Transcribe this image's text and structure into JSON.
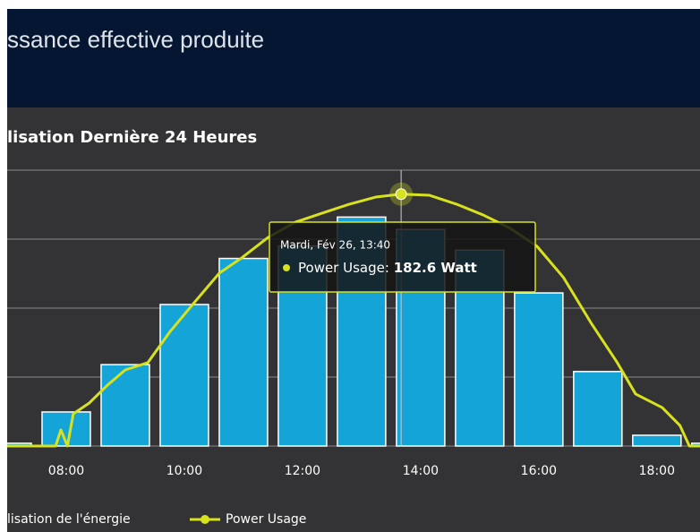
{
  "header": {
    "title": "ssance effective produite"
  },
  "chart_data": {
    "type": "combo",
    "title": "lisation Dernière 24 Heures",
    "series": [
      {
        "name": "lisation de l'énergie",
        "type": "bar",
        "color": "#15a4d8",
        "x": [
          7,
          8,
          9,
          10,
          11,
          12,
          13,
          14,
          15,
          16,
          17,
          18,
          19
        ],
        "values": [
          2,
          24.7,
          59,
          102.6,
          136,
          145,
          166,
          157,
          142,
          111,
          54,
          7.8,
          2
        ]
      },
      {
        "name": "Power Usage",
        "type": "line",
        "color": "#d8e21c",
        "x": [
          7.0,
          7.82,
          7.91,
          8.02,
          8.12,
          8.39,
          8.7,
          9.0,
          9.38,
          9.76,
          10.14,
          10.59,
          10.97,
          11.42,
          11.88,
          12.33,
          12.79,
          13.24,
          13.67,
          14.15,
          14.61,
          15.06,
          15.52,
          15.97,
          16.42,
          16.88,
          17.33,
          17.64,
          18.09,
          18.39,
          18.55,
          18.73
        ],
        "values": [
          0,
          0,
          11.7,
          0,
          23.4,
          31.2,
          44.2,
          55.2,
          60.4,
          83.1,
          102.6,
          125.3,
          136.4,
          151.3,
          162.3,
          168.8,
          175.3,
          180.5,
          182.6,
          181.8,
          175.3,
          167.5,
          157.8,
          144.8,
          122.1,
          89.6,
          60.4,
          37.7,
          27.9,
          14.9,
          0,
          0
        ]
      }
    ],
    "xlim": [
      7.0,
      18.73
    ],
    "xticks": [
      {
        "value": 8,
        "label": "08:00"
      },
      {
        "value": 10,
        "label": "10:00"
      },
      {
        "value": 12,
        "label": "12:00"
      },
      {
        "value": 14,
        "label": "14:00"
      },
      {
        "value": 16,
        "label": "16:00"
      },
      {
        "value": 18,
        "label": "18:00"
      }
    ],
    "ylim": [
      0,
      200
    ],
    "yticks": [
      0,
      50,
      100,
      150,
      200
    ],
    "grid": true,
    "tooltip": {
      "title": "Mardi, Fév 26, 13:40",
      "series_label": "Power Usage:",
      "value_label": "182.6 Watt",
      "point": 18
    }
  }
}
